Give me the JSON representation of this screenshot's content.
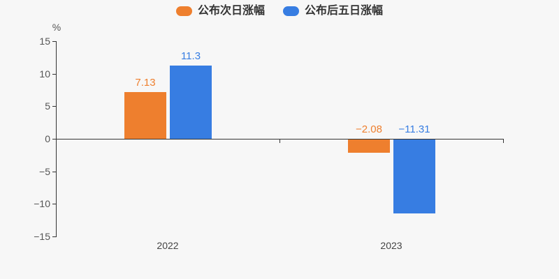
{
  "colors": {
    "background": "#f7f7f7",
    "axis": "#333333",
    "tick_label": "#555555",
    "category_label": "#444444",
    "legend_text": "#333333",
    "series_orange": "#ee7f2e",
    "series_blue": "#377de2"
  },
  "chart_data": {
    "type": "bar",
    "title": "",
    "xlabel": "",
    "ylabel": "%",
    "categories": [
      "2022",
      "2023"
    ],
    "series": [
      {
        "name": "公布次日涨幅",
        "color": "#ee7f2e",
        "values": [
          7.13,
          -2.08
        ]
      },
      {
        "name": "公布后五日涨幅",
        "color": "#377de2",
        "values": [
          11.3,
          -11.31
        ]
      }
    ],
    "ylim": [
      -15,
      15
    ],
    "yticks": [
      15,
      10,
      5,
      0,
      -5,
      -10,
      -15
    ],
    "legend_position": "top-center",
    "grid": false,
    "value_labels": true
  }
}
